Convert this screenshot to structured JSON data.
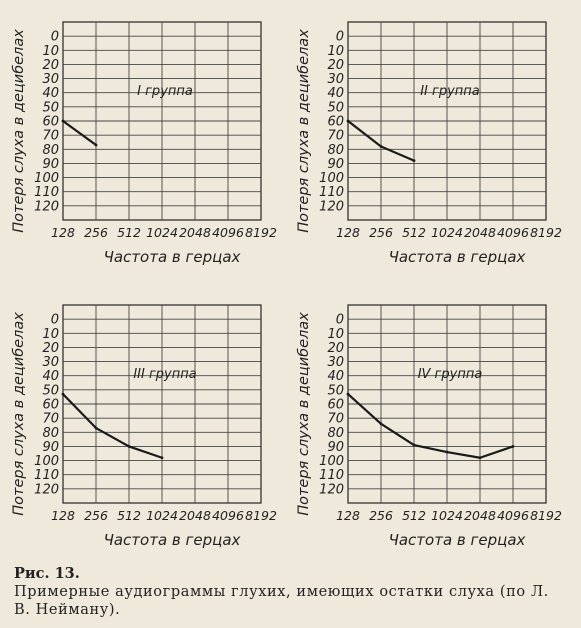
{
  "figure": {
    "label": "Рис. 13.",
    "caption": "Примерные аудиограммы глухих, имеющих остатки слуха (по Л. В. Нейману)."
  },
  "chart_data": [
    {
      "type": "line",
      "annotation": "I группа",
      "xlabel": "Частота в герцах",
      "ylabel": "Потеря слуха в децибелах",
      "x_categories": [
        "128",
        "256",
        "512",
        "1024",
        "2048",
        "4096",
        "8192"
      ],
      "y_ticks": [
        0,
        10,
        20,
        30,
        40,
        50,
        60,
        70,
        80,
        90,
        100,
        110,
        120
      ],
      "ylim": [
        -10,
        130
      ],
      "y_inverted": true,
      "grid": true,
      "series": [
        {
          "x": [
            "128",
            "256"
          ],
          "y": [
            60,
            77
          ]
        }
      ]
    },
    {
      "type": "line",
      "annotation": "II группа",
      "xlabel": "Частота в герцах",
      "ylabel": "Потеря слуха в децибелах",
      "x_categories": [
        "128",
        "256",
        "512",
        "1024",
        "2048",
        "4096",
        "8192"
      ],
      "y_ticks": [
        0,
        10,
        20,
        30,
        40,
        50,
        60,
        70,
        80,
        90,
        100,
        110,
        120
      ],
      "ylim": [
        -10,
        130
      ],
      "y_inverted": true,
      "grid": true,
      "series": [
        {
          "x": [
            "128",
            "256",
            "512"
          ],
          "y": [
            60,
            78,
            88
          ]
        }
      ]
    },
    {
      "type": "line",
      "annotation": "III группа",
      "xlabel": "Частота в герцах",
      "ylabel": "Потеря слуха в децибелах",
      "x_categories": [
        "128",
        "256",
        "512",
        "1024",
        "2048",
        "4096",
        "8192"
      ],
      "y_ticks": [
        0,
        10,
        20,
        30,
        40,
        50,
        60,
        70,
        80,
        90,
        100,
        110,
        120
      ],
      "ylim": [
        -10,
        130
      ],
      "y_inverted": true,
      "grid": true,
      "series": [
        {
          "x": [
            "128",
            "256",
            "512",
            "1024"
          ],
          "y": [
            53,
            77,
            90,
            98
          ]
        }
      ]
    },
    {
      "type": "line",
      "annotation": "IV группа",
      "xlabel": "Частота в герцах",
      "ylabel": "Потеря слуха в децибелах",
      "x_categories": [
        "128",
        "256",
        "512",
        "1024",
        "2048",
        "4096",
        "8192"
      ],
      "y_ticks": [
        0,
        10,
        20,
        30,
        40,
        50,
        60,
        70,
        80,
        90,
        100,
        110,
        120
      ],
      "ylim": [
        -10,
        130
      ],
      "y_inverted": true,
      "grid": true,
      "series": [
        {
          "x": [
            "128",
            "256",
            "512",
            "1024",
            "2048",
            "4096"
          ],
          "y": [
            53,
            74,
            89,
            94,
            98,
            90
          ]
        }
      ]
    }
  ]
}
